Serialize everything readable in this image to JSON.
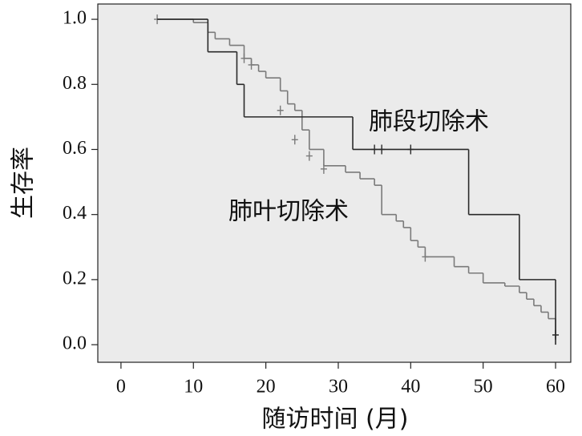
{
  "chart_data": {
    "type": "step",
    "x_label": "随访时间 (月)",
    "y_label": "生存率",
    "annotations": [
      "肺段切除术",
      "肺叶切除术"
    ],
    "background": "#ebebeb",
    "xlim": [
      -3.2,
      62.1
    ],
    "ylim": [
      -0.054,
      1.047
    ],
    "xticks": [
      0,
      10,
      20,
      30,
      40,
      50,
      60
    ],
    "yticks": [
      {
        "value": 0,
        "label": "0.0"
      },
      0.2,
      0.4,
      0.6,
      0.8,
      {
        "value": 1,
        "label": "1.0"
      }
    ],
    "series": [
      {
        "name": "肺段切除术",
        "color": "#2a2a2a",
        "x": [
          5,
          12,
          16,
          17,
          32,
          48,
          55,
          60
        ],
        "values": [
          1.0,
          0.9,
          0.8,
          0.7,
          0.6,
          0.4,
          0.2,
          0.0
        ],
        "censor_x": [
          35,
          36,
          40,
          60
        ],
        "censor_values": [
          0.6,
          0.6,
          0.6,
          0.03
        ]
      },
      {
        "name": "肺叶切除术",
        "color": "#7a7a7a",
        "x": [
          5,
          10,
          12,
          13,
          15,
          17,
          18,
          19,
          20,
          22,
          23,
          24,
          25,
          26,
          28,
          31,
          33,
          35,
          36,
          38,
          39,
          40,
          41,
          42,
          46,
          48,
          50,
          53,
          55,
          56,
          57,
          58,
          59,
          60
        ],
        "values": [
          1.0,
          0.99,
          0.96,
          0.94,
          0.92,
          0.88,
          0.86,
          0.84,
          0.82,
          0.78,
          0.74,
          0.72,
          0.66,
          0.6,
          0.55,
          0.53,
          0.51,
          0.49,
          0.4,
          0.38,
          0.36,
          0.32,
          0.3,
          0.27,
          0.24,
          0.22,
          0.19,
          0.18,
          0.16,
          0.14,
          0.12,
          0.1,
          0.08,
          0.02
        ],
        "censor_x": [
          5,
          17,
          18,
          22,
          24,
          26,
          28,
          42,
          60
        ],
        "censor_values": [
          1.0,
          0.88,
          0.86,
          0.72,
          0.63,
          0.58,
          0.54,
          0.27,
          0.03
        ]
      }
    ]
  }
}
